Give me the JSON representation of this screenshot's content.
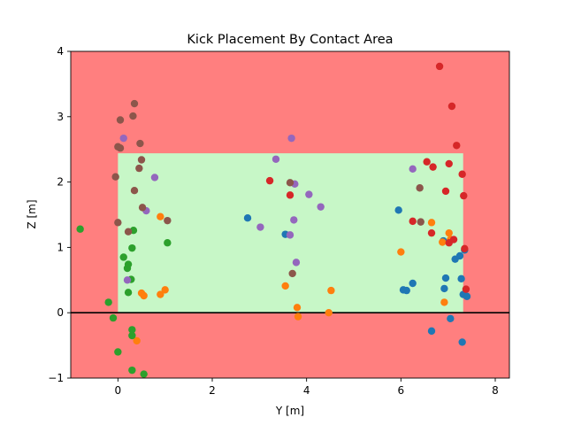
{
  "chart_data": {
    "type": "scatter",
    "title": "Kick Placement By Contact Area",
    "xlabel": "Y [m]",
    "ylabel": "Z [m]",
    "xlim": [
      -1.0,
      8.3
    ],
    "ylim": [
      -1,
      4
    ],
    "xticks": [
      0,
      2,
      4,
      6,
      8
    ],
    "yticks": [
      -1,
      0,
      1,
      2,
      3,
      4
    ],
    "grid": false,
    "background_color": "#ff7f7f",
    "goal_region": {
      "y": [
        0,
        7.32
      ],
      "z": [
        0,
        2.44
      ],
      "color": "#c7f7c7"
    },
    "ground_line": {
      "z": 0,
      "color": "#000000"
    },
    "series": [
      {
        "color": "#1f77b4",
        "points": [
          [
            2.75,
            1.45
          ],
          [
            3.55,
            1.2
          ],
          [
            5.95,
            1.57
          ],
          [
            6.05,
            0.35
          ],
          [
            6.12,
            0.34
          ],
          [
            6.25,
            0.45
          ],
          [
            6.65,
            -0.28
          ],
          [
            6.9,
            1.1
          ],
          [
            6.92,
            0.37
          ],
          [
            6.95,
            0.53
          ],
          [
            7.05,
            -0.09
          ],
          [
            7.15,
            0.82
          ],
          [
            7.25,
            0.87
          ],
          [
            7.28,
            0.52
          ],
          [
            7.3,
            -0.45
          ],
          [
            7.32,
            0.28
          ],
          [
            7.35,
            0.96
          ],
          [
            7.4,
            0.25
          ]
        ]
      },
      {
        "color": "#ff7f0e",
        "points": [
          [
            0.4,
            -0.43
          ],
          [
            0.5,
            0.3
          ],
          [
            0.55,
            0.26
          ],
          [
            0.9,
            0.28
          ],
          [
            0.9,
            1.47
          ],
          [
            1.0,
            0.35
          ],
          [
            3.55,
            0.41
          ],
          [
            3.8,
            0.08
          ],
          [
            3.82,
            -0.06
          ],
          [
            4.47,
            0.0
          ],
          [
            4.52,
            0.34
          ],
          [
            6.0,
            0.93
          ],
          [
            6.65,
            1.38
          ],
          [
            6.88,
            1.08
          ],
          [
            6.92,
            0.16
          ],
          [
            7.02,
            1.22
          ],
          [
            7.05,
            1.12
          ]
        ]
      },
      {
        "color": "#2ca02c",
        "points": [
          [
            -0.8,
            1.28
          ],
          [
            -0.2,
            0.16
          ],
          [
            -0.1,
            -0.08
          ],
          [
            0.0,
            -0.6
          ],
          [
            0.12,
            0.85
          ],
          [
            0.2,
            0.68
          ],
          [
            0.22,
            0.74
          ],
          [
            0.22,
            0.31
          ],
          [
            0.28,
            0.51
          ],
          [
            0.3,
            0.99
          ],
          [
            0.3,
            -0.26
          ],
          [
            0.3,
            -0.35
          ],
          [
            0.3,
            -0.88
          ],
          [
            0.33,
            1.26
          ],
          [
            0.55,
            -0.94
          ],
          [
            1.05,
            1.07
          ]
        ]
      },
      {
        "color": "#d62728",
        "points": [
          [
            3.22,
            2.02
          ],
          [
            3.65,
            1.8
          ],
          [
            6.25,
            1.4
          ],
          [
            6.55,
            2.31
          ],
          [
            6.65,
            1.22
          ],
          [
            6.68,
            2.23
          ],
          [
            6.82,
            3.77
          ],
          [
            6.95,
            1.86
          ],
          [
            7.02,
            2.28
          ],
          [
            7.02,
            1.07
          ],
          [
            7.08,
            3.16
          ],
          [
            7.12,
            1.12
          ],
          [
            7.18,
            2.56
          ],
          [
            7.3,
            2.12
          ],
          [
            7.33,
            1.79
          ],
          [
            7.35,
            0.98
          ],
          [
            7.38,
            0.36
          ]
        ]
      },
      {
        "color": "#9467bd",
        "points": [
          [
            0.12,
            2.67
          ],
          [
            0.2,
            0.5
          ],
          [
            0.6,
            1.56
          ],
          [
            0.78,
            2.07
          ],
          [
            3.02,
            1.31
          ],
          [
            3.35,
            2.35
          ],
          [
            3.65,
            1.19
          ],
          [
            3.68,
            2.67
          ],
          [
            3.73,
            1.42
          ],
          [
            3.75,
            1.97
          ],
          [
            3.78,
            0.77
          ],
          [
            4.05,
            1.81
          ],
          [
            4.3,
            1.62
          ],
          [
            6.25,
            2.2
          ]
        ]
      },
      {
        "color": "#8c564b",
        "points": [
          [
            -0.05,
            2.08
          ],
          [
            0.0,
            2.54
          ],
          [
            0.0,
            1.38
          ],
          [
            0.05,
            2.52
          ],
          [
            0.05,
            2.95
          ],
          [
            0.22,
            1.24
          ],
          [
            0.32,
            3.01
          ],
          [
            0.35,
            3.2
          ],
          [
            0.35,
            1.87
          ],
          [
            0.45,
            2.21
          ],
          [
            0.47,
            2.59
          ],
          [
            0.5,
            2.34
          ],
          [
            0.52,
            1.61
          ],
          [
            1.05,
            1.41
          ],
          [
            3.65,
            1.99
          ],
          [
            3.7,
            0.6
          ],
          [
            6.4,
            1.91
          ],
          [
            6.42,
            1.39
          ]
        ]
      }
    ]
  }
}
